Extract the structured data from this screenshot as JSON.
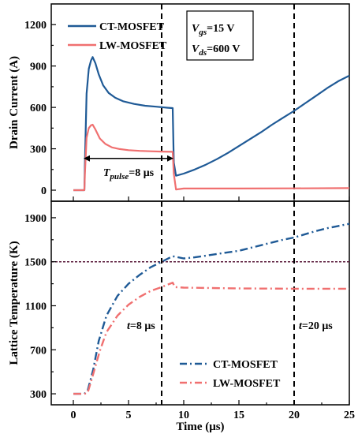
{
  "colors": {
    "ct": "#1f5a96",
    "lw": "#f07070",
    "ref": "#5a1a3a",
    "dash": "#000000"
  },
  "chart_data": [
    {
      "type": "line",
      "ylabel": "Drain Current (A)",
      "xlim": [
        -2,
        25
      ],
      "ylim": [
        -80,
        1350
      ],
      "xticks": [
        0,
        5,
        10,
        15,
        20,
        25
      ],
      "yticks": [
        0,
        300,
        600,
        900,
        1200
      ],
      "legend_position": "top-left",
      "vlines": [
        8,
        20
      ],
      "annotation_box": {
        "vgs": "=15 V",
        "vds": "=600 V",
        "vgs_sym": "V",
        "vgs_sub": "gs",
        "vds_sym": "V",
        "vds_sub": "ds"
      },
      "pulse_annotation": {
        "symbol": "T",
        "sub": "pulse",
        "text": "=8 μs",
        "from": 1,
        "to": 9
      },
      "series": [
        {
          "name": "CT-MOSFET",
          "style": "solid",
          "x": [
            0,
            1,
            1.05,
            1.2,
            1.4,
            1.6,
            1.75,
            2.0,
            2.3,
            2.7,
            3.2,
            3.8,
            4.5,
            5.5,
            6.5,
            7.5,
            8.5,
            9.0,
            9.1,
            9.3,
            10,
            11,
            12,
            13,
            14,
            15,
            16,
            17,
            18,
            19,
            20,
            21,
            22,
            23,
            24,
            25
          ],
          "y": [
            0,
            0,
            200,
            700,
            880,
            940,
            965,
            920,
            840,
            760,
            705,
            670,
            645,
            625,
            612,
            605,
            598,
            595,
            200,
            105,
            120,
            150,
            185,
            225,
            270,
            320,
            370,
            420,
            475,
            525,
            575,
            630,
            685,
            740,
            790,
            830
          ]
        },
        {
          "name": "LW-MOSFET",
          "style": "solid",
          "x": [
            0,
            1,
            1.05,
            1.2,
            1.4,
            1.6,
            1.75,
            2.0,
            2.4,
            2.9,
            3.5,
            4.2,
            5.0,
            6.0,
            7.0,
            8.0,
            9.0,
            9.1,
            9.3,
            10,
            15,
            20,
            25
          ],
          "y": [
            0,
            0,
            120,
            380,
            450,
            470,
            475,
            440,
            375,
            335,
            310,
            298,
            290,
            285,
            282,
            280,
            278,
            120,
            5,
            12,
            12,
            13,
            15
          ]
        }
      ]
    },
    {
      "type": "line",
      "xlabel": "Time (μs)",
      "ylabel": "Lattice Temperature (K)",
      "xlim": [
        -2,
        25
      ],
      "ylim": [
        200,
        2050
      ],
      "xticks": [
        0,
        5,
        10,
        15,
        20,
        25
      ],
      "yticks": [
        300,
        700,
        1100,
        1500,
        1900
      ],
      "legend_position": "bottom-right",
      "hline": 1500,
      "vlines": [
        8,
        20
      ],
      "time_labels": [
        {
          "sym": "t",
          "text": "=8 μs",
          "x": 8
        },
        {
          "sym": "t",
          "text": "=20 μs",
          "x": 20
        }
      ],
      "series": [
        {
          "name": "CT-MOSFET",
          "style": "dashdot",
          "x": [
            0,
            1,
            1.3,
            1.8,
            2.3,
            3.0,
            4.0,
            5.0,
            6.0,
            7.0,
            8.0,
            9.0,
            10,
            11,
            12,
            13,
            14,
            15,
            16,
            17,
            18,
            19,
            20,
            21,
            22,
            23,
            24,
            25
          ],
          "y": [
            300,
            300,
            330,
            520,
            780,
            1010,
            1190,
            1300,
            1380,
            1450,
            1500,
            1550,
            1530,
            1540,
            1555,
            1570,
            1585,
            1600,
            1625,
            1650,
            1675,
            1700,
            1720,
            1750,
            1780,
            1805,
            1825,
            1845
          ]
        },
        {
          "name": "LW-MOSFET",
          "style": "dashdot",
          "x": [
            0,
            1,
            1.3,
            1.8,
            2.4,
            3.0,
            4.0,
            5.0,
            6.0,
            7.0,
            8.0,
            9.0,
            9.2,
            10,
            12,
            15,
            20,
            25
          ],
          "y": [
            300,
            300,
            310,
            480,
            690,
            860,
            1010,
            1110,
            1180,
            1235,
            1270,
            1310,
            1270,
            1265,
            1262,
            1258,
            1255,
            1255
          ]
        }
      ]
    }
  ]
}
